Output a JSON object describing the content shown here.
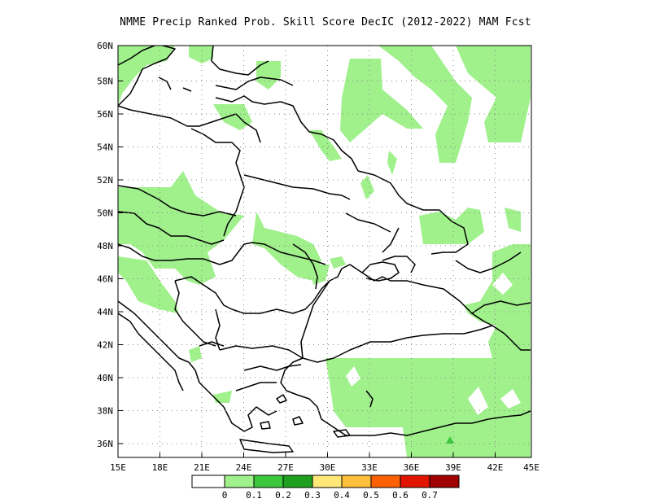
{
  "title": "NMME Precip Ranked Prob. Skill Score DecIC (2012-2022) MAM Fcst",
  "map": {
    "lon_range": [
      15,
      45
    ],
    "lat_range": [
      35,
      60
    ],
    "lon_ticks": [
      "15E",
      "18E",
      "21E",
      "24E",
      "27E",
      "30E",
      "33E",
      "36E",
      "39E",
      "42E",
      "45E"
    ],
    "lat_ticks": [
      "36N",
      "38N",
      "40N",
      "42N",
      "44N",
      "46N",
      "48N",
      "50N",
      "52N",
      "54N",
      "56N",
      "58N",
      "60N"
    ],
    "grid": "dotted"
  },
  "legend": {
    "labels": [
      "0",
      "0.1",
      "0.2",
      "0.3",
      "0.4",
      "0.5",
      "0.6",
      "0.7"
    ],
    "colors": [
      "#ffffff",
      "#a0f08c",
      "#3cc83c",
      "#1ea01e",
      "#ffe878",
      "#ffc03c",
      "#ff6000",
      "#e11400",
      "#a00000"
    ]
  }
}
